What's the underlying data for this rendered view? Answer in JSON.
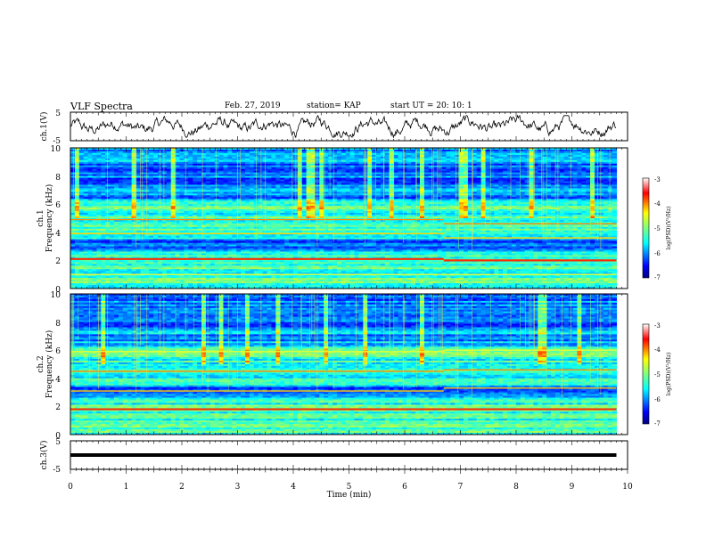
{
  "header": {
    "title": "VLF Spectra",
    "date": "Feb. 27, 2019",
    "station": "station= KAP",
    "start": "start UT =  20: 10: 1"
  },
  "chart_data": [
    {
      "type": "line",
      "name": "ch1-waveform",
      "ylabel": "ch.1(V)",
      "yticks": [
        "5",
        "-5"
      ],
      "ylim": [
        -5,
        5
      ],
      "xlim": [
        0,
        10
      ]
    },
    {
      "type": "heatmap",
      "name": "ch1-spectrogram",
      "ylabel": "Frequency (kHz)",
      "ylabel_top": "ch.1",
      "yticks": [
        "0",
        "2",
        "4",
        "6",
        "8",
        "10"
      ],
      "ylim": [
        0,
        10
      ],
      "xlim": [
        0,
        10
      ],
      "data_end_min": 9.8,
      "strong_lines_khz_before": [
        2.1,
        3.9,
        4.9,
        1.0
      ],
      "strong_lines_khz_after": [
        2.0,
        3.6,
        4.6,
        1.0
      ],
      "transition_min": 6.7,
      "colorbar": {
        "ticks": [
          "-3",
          "-4",
          "-5",
          "-6",
          "-7"
        ],
        "range": [
          -7,
          -3
        ],
        "label": "log(PSD)(V²/Hz)"
      }
    },
    {
      "type": "heatmap",
      "name": "ch2-spectrogram",
      "ylabel": "Frequency (kHz)",
      "ylabel_top": "ch.2",
      "yticks": [
        "0",
        "2",
        "4",
        "6",
        "8",
        "10"
      ],
      "ylim": [
        0,
        10
      ],
      "xlim": [
        0,
        10
      ],
      "data_end_min": 9.8,
      "strong_lines_khz_before": [
        1.8,
        3.1,
        4.5,
        5.9
      ],
      "strong_lines_khz_after": [
        1.8,
        3.3,
        4.6,
        6.0
      ],
      "transition_min": 6.7,
      "colorbar": {
        "ticks": [
          "-3",
          "-4",
          "-5",
          "-6",
          "-7"
        ],
        "range": [
          -7,
          -3
        ],
        "label": "log(PSD)(V²/Hz)"
      }
    },
    {
      "type": "line",
      "name": "ch3-waveform",
      "ylabel": "ch.3(V)",
      "yticks": [
        "5",
        "-5"
      ],
      "ylim": [
        -5,
        5
      ],
      "xlim": [
        0,
        10
      ],
      "constant_value": 0
    }
  ],
  "xaxis": {
    "label": "Time (min)",
    "ticks": [
      "0",
      "1",
      "2",
      "3",
      "4",
      "5",
      "6",
      "7",
      "8",
      "9",
      "10"
    ]
  },
  "colors": {
    "jet": [
      "#00007f",
      "#0000ff",
      "#007fff",
      "#00ffff",
      "#7fff7f",
      "#ffff00",
      "#ff7f00",
      "#ff0000",
      "#ffffff"
    ]
  }
}
